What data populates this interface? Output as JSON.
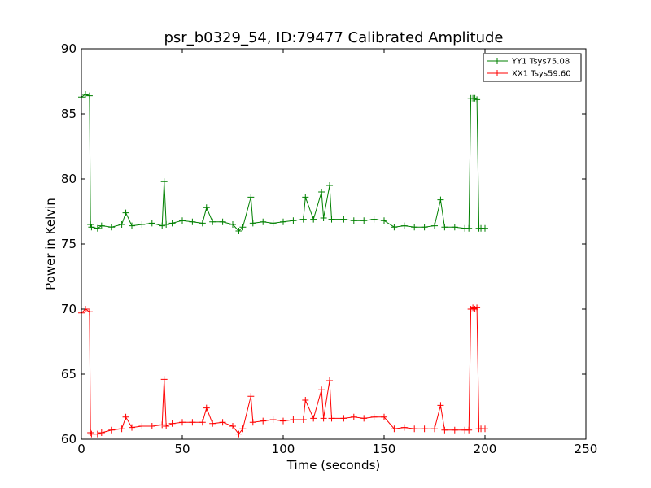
{
  "chart_data": {
    "type": "line",
    "title": "psr_b0329_54, ID:79477 Calibrated Amplitude",
    "xlabel": "Time (seconds)",
    "ylabel": "Power in Kelvin",
    "xlim": [
      0,
      250
    ],
    "ylim": [
      60,
      90
    ],
    "xticks": [
      "0",
      "50",
      "100",
      "150",
      "200",
      "250"
    ],
    "yticks": [
      "60",
      "65",
      "70",
      "75",
      "80",
      "85",
      "90"
    ],
    "grid": false,
    "legend_position": "top-right",
    "marker": "plus",
    "series": [
      {
        "name": "YY1 Tsys75.08",
        "color": "#008000",
        "x": [
          0,
          2,
          4,
          4.5,
          5,
          8,
          10,
          15,
          20,
          22,
          25,
          30,
          35,
          40,
          41,
          42,
          45,
          50,
          55,
          60,
          62,
          65,
          70,
          75,
          78,
          80,
          84,
          85,
          90,
          95,
          100,
          105,
          110,
          111,
          115,
          119,
          120,
          123,
          124,
          130,
          135,
          140,
          145,
          150,
          155,
          160,
          165,
          170,
          175,
          178,
          180,
          185,
          190,
          192,
          193,
          194,
          195,
          196,
          197,
          198,
          200
        ],
        "y": [
          86.3,
          86.5,
          86.4,
          76.5,
          76.3,
          76.2,
          76.4,
          76.3,
          76.5,
          77.4,
          76.4,
          76.5,
          76.6,
          76.4,
          79.8,
          76.5,
          76.6,
          76.8,
          76.7,
          76.6,
          77.8,
          76.7,
          76.7,
          76.5,
          76.0,
          76.3,
          78.6,
          76.6,
          76.7,
          76.6,
          76.7,
          76.8,
          76.9,
          78.6,
          76.9,
          79.0,
          77.0,
          79.5,
          76.9,
          76.9,
          76.8,
          76.8,
          76.9,
          76.8,
          76.3,
          76.4,
          76.3,
          76.3,
          76.4,
          78.4,
          76.3,
          76.3,
          76.2,
          76.2,
          86.2,
          86.2,
          86.2,
          86.1,
          76.2,
          76.2,
          76.2
        ]
      },
      {
        "name": "XX1 Tsys59.60",
        "color": "#ff0000",
        "x": [
          0,
          2,
          4,
          4.5,
          5,
          8,
          10,
          15,
          20,
          22,
          25,
          30,
          35,
          40,
          41,
          42,
          45,
          50,
          55,
          60,
          62,
          65,
          70,
          75,
          78,
          80,
          84,
          85,
          90,
          95,
          100,
          105,
          110,
          111,
          115,
          119,
          120,
          123,
          124,
          130,
          135,
          140,
          145,
          150,
          155,
          160,
          165,
          170,
          175,
          178,
          180,
          185,
          190,
          192,
          193,
          194,
          195,
          196,
          197,
          198,
          200
        ],
        "y": [
          69.7,
          70.0,
          69.8,
          60.5,
          60.4,
          60.4,
          60.5,
          60.7,
          60.8,
          61.7,
          60.9,
          61.0,
          61.0,
          61.1,
          64.6,
          61.0,
          61.2,
          61.3,
          61.3,
          61.3,
          62.4,
          61.2,
          61.3,
          61.0,
          60.4,
          60.8,
          63.3,
          61.3,
          61.4,
          61.5,
          61.4,
          61.5,
          61.5,
          63.0,
          61.6,
          63.8,
          61.6,
          64.5,
          61.6,
          61.6,
          61.7,
          61.6,
          61.7,
          61.7,
          60.8,
          60.9,
          60.8,
          60.8,
          60.8,
          62.6,
          60.7,
          60.7,
          60.7,
          60.7,
          70.0,
          70.1,
          70.0,
          70.1,
          60.8,
          60.8,
          60.8
        ]
      }
    ]
  }
}
